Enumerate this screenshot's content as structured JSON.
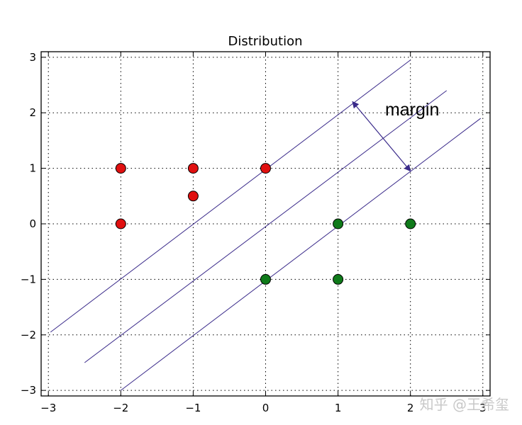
{
  "chart_data": {
    "type": "scatter",
    "title": "Distribution",
    "xlabel": "",
    "ylabel": "",
    "xlim": [
      -3.1,
      3.1
    ],
    "ylim": [
      -3.1,
      3.1
    ],
    "grid": true,
    "x_ticks": [
      -3,
      -2,
      -1,
      0,
      1,
      2,
      3
    ],
    "y_ticks": [
      -3,
      -2,
      -1,
      0,
      1,
      2,
      3
    ],
    "x_tick_labels": [
      "−3",
      "−2",
      "−1",
      "0",
      "1",
      "2",
      "3"
    ],
    "y_tick_labels": [
      "−3",
      "−2",
      "−1",
      "0",
      "1",
      "2",
      "3"
    ],
    "series": [
      {
        "color": "#e01010",
        "points": [
          {
            "x": -2,
            "y": 1
          },
          {
            "x": -1,
            "y": 1
          },
          {
            "x": 0,
            "y": 1
          },
          {
            "x": -1,
            "y": 0.5
          },
          {
            "x": -2,
            "y": 0
          }
        ]
      },
      {
        "color": "#0f7a1a",
        "points": [
          {
            "x": 1,
            "y": 0
          },
          {
            "x": 2,
            "y": 0
          },
          {
            "x": 0,
            "y": -1
          },
          {
            "x": 1,
            "y": -1
          }
        ]
      }
    ],
    "lines": [
      {
        "name": "upper-margin",
        "x1": -2.97,
        "y1": -1.95,
        "x2": 2.0,
        "y2": 2.95
      },
      {
        "name": "decision-boundary",
        "x1": -2.5,
        "y1": -2.5,
        "x2": 2.5,
        "y2": 2.4
      },
      {
        "name": "lower-margin",
        "x1": -2.0,
        "y1": -3.0,
        "x2": 2.97,
        "y2": 1.9
      }
    ],
    "line_color": "#3a2a8a",
    "annotation": {
      "text": "margin",
      "x": 1.65,
      "y": 1.95,
      "arrow": {
        "x1": 1.2,
        "y1": 2.2,
        "x2": 2.0,
        "y2": 0.95
      }
    }
  },
  "watermark": "知乎 @王希玺"
}
